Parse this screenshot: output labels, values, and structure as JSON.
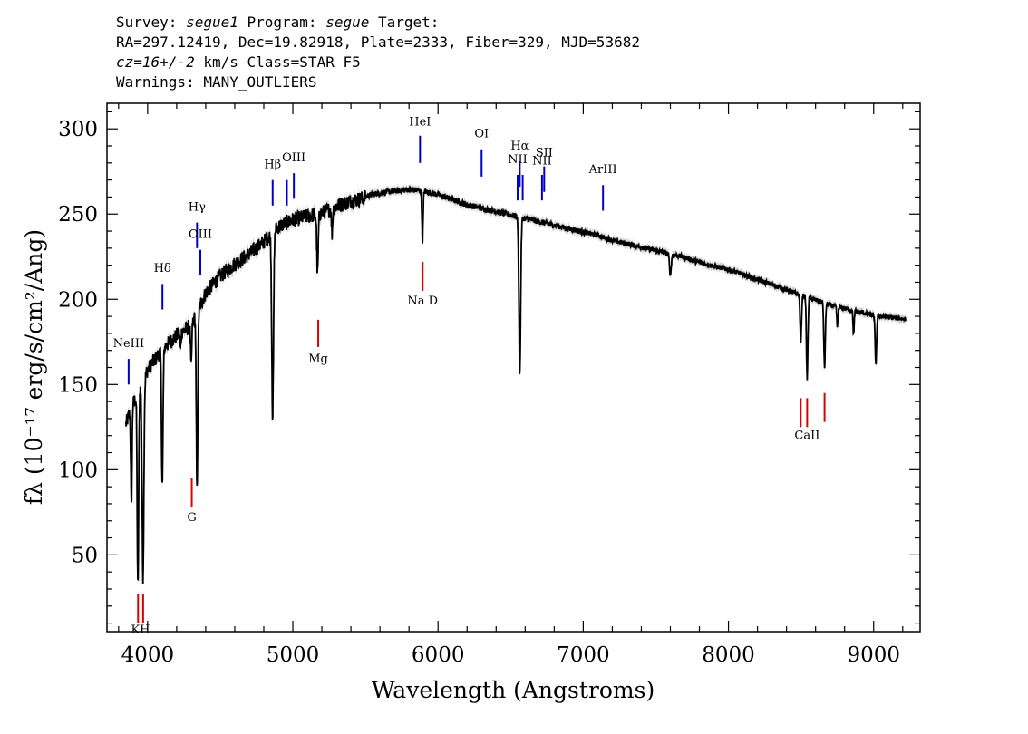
{
  "header": {
    "line1_prefix": "Survey: ",
    "survey": "segue1",
    "line1_mid": " Program: ",
    "program": "segue",
    "line1_suffix": " Target:",
    "line2": "RA=297.12419, Dec=19.82918, Plate=2333, Fiber=329, MJD=53682",
    "cz": "cz=16+/-2",
    "line3_suffix": " km/s Class=STAR F5",
    "line4": "Warnings: MANY_OUTLIERS"
  },
  "chart_data": {
    "type": "line",
    "xlabel": "Wavelength (Angstroms)",
    "ylabel": "fλ (10⁻¹⁷ erg/s/cm²/Ang)",
    "xlim": [
      3720,
      9320
    ],
    "ylim": [
      5,
      315
    ],
    "xticks": [
      4000,
      5000,
      6000,
      7000,
      8000,
      9000
    ],
    "yticks": [
      50,
      100,
      150,
      200,
      250,
      300
    ],
    "colors": {
      "spectrum": "#000000",
      "error_band": "#9a9a9a",
      "emission": "#0000cc",
      "absorption": "#dd0000"
    },
    "continuum": [
      [
        3850,
        128
      ],
      [
        3900,
        140
      ],
      [
        4000,
        160
      ],
      [
        4100,
        172
      ],
      [
        4200,
        180
      ],
      [
        4300,
        186
      ],
      [
        4400,
        205
      ],
      [
        4500,
        215
      ],
      [
        4600,
        222
      ],
      [
        4700,
        228
      ],
      [
        4800,
        235
      ],
      [
        4900,
        244
      ],
      [
        5000,
        248
      ],
      [
        5100,
        250
      ],
      [
        5200,
        252
      ],
      [
        5300,
        256
      ],
      [
        5400,
        259
      ],
      [
        5500,
        261
      ],
      [
        5600,
        263
      ],
      [
        5700,
        264
      ],
      [
        5800,
        265
      ],
      [
        5900,
        264
      ],
      [
        6000,
        262
      ],
      [
        6100,
        259
      ],
      [
        6200,
        256
      ],
      [
        6300,
        254
      ],
      [
        6400,
        252
      ],
      [
        6500,
        250
      ],
      [
        6600,
        248
      ],
      [
        6700,
        246
      ],
      [
        6800,
        244
      ],
      [
        6900,
        242
      ],
      [
        7000,
        240
      ],
      [
        7100,
        238
      ],
      [
        7200,
        235
      ],
      [
        7300,
        233
      ],
      [
        7400,
        231
      ],
      [
        7500,
        229
      ],
      [
        7600,
        227
      ],
      [
        7700,
        225
      ],
      [
        7800,
        222
      ],
      [
        7900,
        220
      ],
      [
        8000,
        218
      ],
      [
        8100,
        215
      ],
      [
        8200,
        212
      ],
      [
        8300,
        209
      ],
      [
        8400,
        206
      ],
      [
        8500,
        203
      ],
      [
        8600,
        200
      ],
      [
        8700,
        197
      ],
      [
        8800,
        195
      ],
      [
        8900,
        193
      ],
      [
        9000,
        191
      ],
      [
        9100,
        190
      ],
      [
        9200,
        189
      ]
    ],
    "absorption_features": [
      {
        "wave": 3888,
        "depth": 58,
        "width": 4
      },
      {
        "wave": 3933,
        "depth": 115,
        "width": 5
      },
      {
        "wave": 3968,
        "depth": 115,
        "width": 6
      },
      {
        "wave": 4101,
        "depth": 80,
        "width": 5
      },
      {
        "wave": 4226,
        "depth": 10,
        "width": 3
      },
      {
        "wave": 4300,
        "depth": 25,
        "width": 4
      },
      {
        "wave": 4340,
        "depth": 105,
        "width": 5
      },
      {
        "wave": 4861,
        "depth": 108,
        "width": 6
      },
      {
        "wave": 5170,
        "depth": 35,
        "width": 5
      },
      {
        "wave": 5270,
        "depth": 15,
        "width": 4
      },
      {
        "wave": 5893,
        "depth": 30,
        "width": 4
      },
      {
        "wave": 6563,
        "depth": 92,
        "width": 6
      },
      {
        "wave": 7600,
        "depth": 12,
        "width": 6
      },
      {
        "wave": 8498,
        "depth": 28,
        "width": 5
      },
      {
        "wave": 8542,
        "depth": 48,
        "width": 5
      },
      {
        "wave": 8662,
        "depth": 38,
        "width": 5
      },
      {
        "wave": 8750,
        "depth": 12,
        "width": 4
      },
      {
        "wave": 8862,
        "depth": 14,
        "width": 4
      },
      {
        "wave": 9015,
        "depth": 28,
        "width": 5
      },
      {
        "wave": 9230,
        "depth": 10,
        "width": 4
      }
    ],
    "emission_lines": [
      {
        "label": "NeIII",
        "wave": 3869,
        "y_top": 165,
        "y_bot": 150,
        "label_y": 172
      },
      {
        "label": "Hδ",
        "wave": 4102,
        "y_top": 209,
        "y_bot": 194,
        "label_y": 216
      },
      {
        "label": "Hγ",
        "wave": 4340,
        "y_top": 245,
        "y_bot": 230,
        "label_y": 252
      },
      {
        "label": "OIII",
        "wave": 4363,
        "y_top": 229,
        "y_bot": 214,
        "label_y": 236
      },
      {
        "label": "Hβ",
        "wave": 4861,
        "y_top": 270,
        "y_bot": 255,
        "label_y": 277
      },
      {
        "label": "OIII",
        "wave": 4959,
        "y_top": 270,
        "y_bot": 255,
        "label_y": 0
      },
      {
        "label": "OIII",
        "wave": 5007,
        "y_top": 274,
        "y_bot": 259,
        "label_y": 281
      },
      {
        "label": "HeI",
        "wave": 5876,
        "y_top": 296,
        "y_bot": 280,
        "label_y": 302
      },
      {
        "label": "OI",
        "wave": 6300,
        "y_top": 288,
        "y_bot": 272,
        "label_y": 295
      },
      {
        "label": "NII",
        "wave": 6548,
        "y_top": 273,
        "y_bot": 258,
        "label_y": 280
      },
      {
        "label": "Hα",
        "wave": 6563,
        "y_top": 281,
        "y_bot": 266,
        "label_y": 288
      },
      {
        "label": "NII",
        "wave": 6583,
        "y_top": 273,
        "y_bot": 258,
        "label_y": 0
      },
      {
        "label": "NII",
        "wave": 6716,
        "y_top": 273,
        "y_bot": 258,
        "label_y": 279
      },
      {
        "label": "SII",
        "wave": 6731,
        "y_top": 278,
        "y_bot": 263,
        "label_y": 284
      },
      {
        "label": "ArIII",
        "wave": 7136,
        "y_top": 267,
        "y_bot": 252,
        "label_y": 274
      }
    ],
    "absorption_lines": [
      {
        "label": "K",
        "wave": 3934,
        "y_top": 27,
        "y_bot": 10
      },
      {
        "label": "H",
        "wave": 3969,
        "y_top": 27,
        "y_bot": 10
      },
      {
        "label": "G",
        "wave": 4304,
        "y_top": 95,
        "y_bot": 78,
        "label_y": 70
      },
      {
        "label": "Mg",
        "wave": 5175,
        "y_top": 188,
        "y_bot": 172,
        "label_y": 163
      },
      {
        "label": "Na D",
        "wave": 5894,
        "y_top": 222,
        "y_bot": 205,
        "label_y": 197
      },
      {
        "label": "CaII",
        "wave": 8498,
        "y_top": 142,
        "y_bot": 125,
        "label_y": 0
      },
      {
        "label": "CaII",
        "wave": 8542,
        "y_top": 142,
        "y_bot": 125,
        "label_y": 118
      },
      {
        "label": "CaII",
        "wave": 8662,
        "y_top": 145,
        "y_bot": 128,
        "label_y": 0
      }
    ],
    "kh_label": "KH",
    "kh_label_y": 4
  }
}
